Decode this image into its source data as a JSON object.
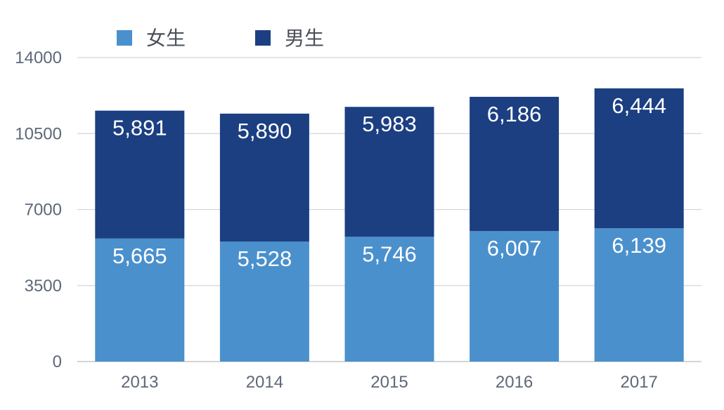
{
  "chart_data": {
    "type": "bar",
    "stacked": true,
    "categories": [
      "2013",
      "2014",
      "2015",
      "2016",
      "2017"
    ],
    "series": [
      {
        "name": "女生",
        "color": "#4a90cc",
        "values": [
          5665,
          5528,
          5746,
          6007,
          6139
        ],
        "labels": [
          "5,665",
          "5,528",
          "5,746",
          "6,007",
          "6,139"
        ]
      },
      {
        "name": "男生",
        "color": "#1c3f82",
        "values": [
          5891,
          5890,
          5983,
          6186,
          6444
        ],
        "labels": [
          "5,891",
          "5,890",
          "5,983",
          "6,186",
          "6,444"
        ]
      }
    ],
    "yticks": [
      "0",
      "3500",
      "7000",
      "10500",
      "14000"
    ],
    "ylim": [
      0,
      14000
    ],
    "grid": true,
    "legend_position": "top-left",
    "title": "",
    "xlabel": "",
    "ylabel": ""
  }
}
